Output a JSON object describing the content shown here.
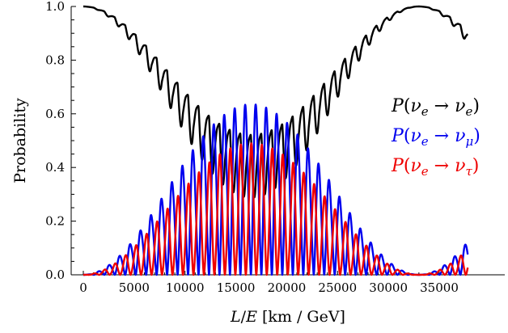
{
  "chart_data": {
    "type": "line",
    "title": "",
    "xlabel": "L/E [km/GeV]",
    "ylabel": "Probability",
    "xlim": [
      0,
      37800
    ],
    "ylim": [
      0,
      1
    ],
    "x_ticks": [
      0,
      5000,
      10000,
      15000,
      20000,
      25000,
      30000,
      35000
    ],
    "x_tick_labels": [
      "0",
      "5000",
      "10000",
      "15000",
      "20000",
      "25000",
      "30000",
      "35000"
    ],
    "y_ticks": [
      0,
      0.2,
      0.4,
      0.6,
      0.8,
      1.0
    ],
    "y_tick_labels": [
      "0.0",
      "0.2",
      "0.4",
      "0.6",
      "0.8",
      "1.0"
    ],
    "grid": false,
    "legend_position": "right",
    "slow_oscillation_period": 33000,
    "fast_oscillation_period": 1030,
    "series": [
      {
        "name": "P(νe → νe)",
        "color": "#000000",
        "key_points": [
          {
            "x": 0,
            "y": 1.0
          },
          {
            "x": 500,
            "y": 0.91
          },
          {
            "x": 2000,
            "y": 0.91
          },
          {
            "x": 5000,
            "y": 0.79
          },
          {
            "x": 7500,
            "y": 0.6
          },
          {
            "x": 9000,
            "y": 0.47
          },
          {
            "x": 11000,
            "y": 0.29
          },
          {
            "x": 13000,
            "y": 0.17
          },
          {
            "x": 15000,
            "y": 0.14
          },
          {
            "x": 16500,
            "y": 0.13
          },
          {
            "x": 18000,
            "y": 0.15
          },
          {
            "x": 21000,
            "y": 0.26
          },
          {
            "x": 24000,
            "y": 0.46
          },
          {
            "x": 27000,
            "y": 0.72
          },
          {
            "x": 30000,
            "y": 0.92
          },
          {
            "x": 33000,
            "y": 1.0
          },
          {
            "x": 36000,
            "y": 0.88
          },
          {
            "x": 37500,
            "y": 0.73
          }
        ]
      },
      {
        "name": "P(νe → νμ)",
        "color": "#0000ee",
        "key_points": [
          {
            "x": 0,
            "y": 0.0
          },
          {
            "x": 5000,
            "y": 0.16
          },
          {
            "x": 8000,
            "y": 0.38
          },
          {
            "x": 11000,
            "y": 0.55
          },
          {
            "x": 14000,
            "y": 0.67
          },
          {
            "x": 16000,
            "y": 0.7
          },
          {
            "x": 18000,
            "y": 0.68
          },
          {
            "x": 21000,
            "y": 0.56
          },
          {
            "x": 24000,
            "y": 0.38
          },
          {
            "x": 27000,
            "y": 0.2
          },
          {
            "x": 30000,
            "y": 0.07
          },
          {
            "x": 33000,
            "y": 0.02
          },
          {
            "x": 35000,
            "y": 0.06
          },
          {
            "x": 37500,
            "y": 0.2
          }
        ]
      },
      {
        "name": "P(νe → ντ)",
        "color": "#ee0000",
        "key_points": [
          {
            "x": 0,
            "y": 0.0
          },
          {
            "x": 5000,
            "y": 0.14
          },
          {
            "x": 8000,
            "y": 0.27
          },
          {
            "x": 11000,
            "y": 0.37
          },
          {
            "x": 14000,
            "y": 0.43
          },
          {
            "x": 16000,
            "y": 0.44
          },
          {
            "x": 18000,
            "y": 0.43
          },
          {
            "x": 21000,
            "y": 0.37
          },
          {
            "x": 24000,
            "y": 0.25
          },
          {
            "x": 27000,
            "y": 0.14
          },
          {
            "x": 30000,
            "y": 0.06
          },
          {
            "x": 33000,
            "y": 0.02
          },
          {
            "x": 35000,
            "y": 0.06
          },
          {
            "x": 37500,
            "y": 0.16
          }
        ]
      }
    ]
  },
  "legend": {
    "ee": {
      "P": "P",
      "open": "(",
      "nu1": "ν",
      "sub1": "e",
      "arrow": " → ",
      "nu2": "ν",
      "sub2": "e",
      "close": ")"
    },
    "emu": {
      "P": "P",
      "open": "(",
      "nu1": "ν",
      "sub1": "e",
      "arrow": " → ",
      "nu2": "ν",
      "sub2": "μ",
      "close": ")"
    },
    "etau": {
      "P": "P",
      "open": "(",
      "nu1": "ν",
      "sub1": "e",
      "arrow": " → ",
      "nu2": "ν",
      "sub2": "τ",
      "close": ")"
    }
  },
  "axis": {
    "ylabel": "Probability",
    "xlabel_L": "L",
    "xlabel_slash": "/",
    "xlabel_E": "E",
    "xlabel_units": " [km / GeV]"
  }
}
